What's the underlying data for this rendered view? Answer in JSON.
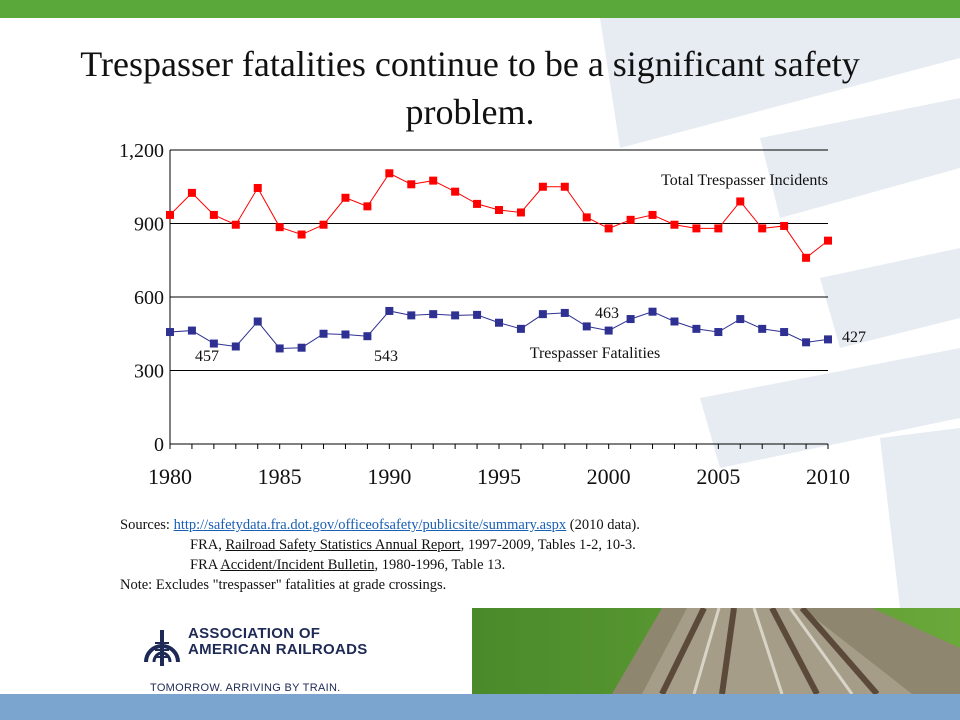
{
  "title": "Trespasser fatalities continue to be a significant safety problem.",
  "chart_data": {
    "type": "line",
    "x": [
      1980,
      1981,
      1982,
      1983,
      1984,
      1985,
      1986,
      1987,
      1988,
      1989,
      1990,
      1991,
      1992,
      1993,
      1994,
      1995,
      1996,
      1997,
      1998,
      1999,
      2000,
      2001,
      2002,
      2003,
      2004,
      2005,
      2006,
      2007,
      2008,
      2009,
      2010
    ],
    "series": [
      {
        "name": "Total Trespasser Incidents",
        "color": "#ff0000",
        "values": [
          935,
          1025,
          935,
          895,
          1045,
          885,
          855,
          895,
          1005,
          970,
          1105,
          1060,
          1075,
          1030,
          980,
          955,
          945,
          1050,
          1050,
          925,
          880,
          915,
          935,
          895,
          880,
          880,
          990,
          880,
          890,
          760,
          830
        ]
      },
      {
        "name": "Trespasser Fatalities",
        "color": "#2e3192",
        "values": [
          457,
          463,
          410,
          398,
          500,
          390,
          393,
          450,
          447,
          440,
          543,
          525,
          530,
          525,
          527,
          495,
          470,
          530,
          535,
          480,
          463,
          510,
          540,
          500,
          470,
          457,
          510,
          470,
          457,
          415,
          427
        ]
      }
    ],
    "ylim": [
      0,
      1200
    ],
    "yticks": [
      "0",
      "300",
      "600",
      "900",
      "1,200"
    ],
    "xticks": [
      "1980",
      "1985",
      "1990",
      "1995",
      "2000",
      "2005",
      "2010"
    ],
    "annotations": [
      "457",
      "543",
      "463",
      "427"
    ],
    "grid": true
  },
  "sources": {
    "label": "Sources:",
    "link": "http://safetydata.fra.dot.gov/officeofsafety/publicsite/summary.aspx",
    "link_suffix": " (2010 data).",
    "line2_prefix": "FRA, ",
    "line2_title": "Railroad Safety Statistics Annual Report",
    "line2_suffix": ", 1997-2009, Tables 1-2, 10-3.",
    "line3_prefix": "FRA ",
    "line3_title": "Accident/Incident Bulletin",
    "line3_suffix": ", 1980-1996, Table 13.",
    "note": "Note:  Excludes \"trespasser\" fatalities at grade crossings."
  },
  "logo": {
    "line1": "ASSOCIATION OF",
    "line2": "AMERICAN RAILROADS",
    "tagline": "TOMORROW. ARRIVING BY TRAIN."
  }
}
